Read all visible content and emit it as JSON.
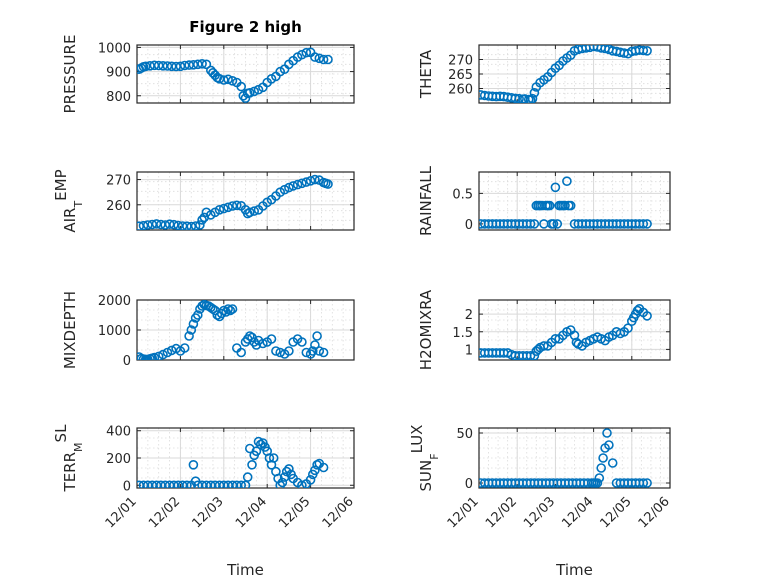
{
  "figure_title": "Figure 2 high",
  "marker_color": "#0072BD",
  "chart_data": [
    {
      "id": "pressure",
      "type": "scatter",
      "title": "Figure 2 high",
      "ylabel": "PRESSURE",
      "ylabel_sub": "",
      "xlim": [
        0,
        5
      ],
      "ylim": [
        770,
        1010
      ],
      "yticks": [
        800,
        900,
        1000
      ],
      "xticks": [
        "12/01",
        "12/02",
        "12/03",
        "12/04",
        "12/05",
        "12/06"
      ],
      "show_xticks": false,
      "xlabel": "",
      "x": [
        0.05,
        0.1,
        0.15,
        0.2,
        0.3,
        0.4,
        0.5,
        0.6,
        0.7,
        0.8,
        0.9,
        1.0,
        1.1,
        1.2,
        1.3,
        1.4,
        1.5,
        1.6,
        1.7,
        1.75,
        1.8,
        1.85,
        1.9,
        2.0,
        2.1,
        2.2,
        2.3,
        2.4,
        2.45,
        2.5,
        2.55,
        2.6,
        2.7,
        2.8,
        2.9,
        3.0,
        3.1,
        3.2,
        3.3,
        3.4,
        3.5,
        3.6,
        3.7,
        3.8,
        3.9,
        4.0,
        4.1,
        4.2,
        4.3,
        4.4
      ],
      "y": [
        910,
        915,
        920,
        922,
        924,
        926,
        925,
        924,
        923,
        922,
        921,
        922,
        925,
        927,
        928,
        930,
        932,
        930,
        905,
        895,
        885,
        875,
        870,
        865,
        868,
        862,
        855,
        838,
        800,
        790,
        810,
        812,
        818,
        825,
        835,
        855,
        870,
        880,
        900,
        910,
        930,
        945,
        960,
        970,
        978,
        980,
        960,
        955,
        950,
        950
      ]
    },
    {
      "id": "theta",
      "type": "scatter",
      "title": "",
      "ylabel": "THETA",
      "ylabel_sub": "",
      "xlim": [
        0,
        5
      ],
      "ylim": [
        255,
        275
      ],
      "yticks": [
        260,
        265,
        270
      ],
      "xticks": [
        "12/01",
        "12/02",
        "12/03",
        "12/04",
        "12/05",
        "12/06"
      ],
      "show_xticks": false,
      "xlabel": "",
      "x": [
        0.05,
        0.15,
        0.25,
        0.35,
        0.45,
        0.55,
        0.65,
        0.75,
        0.85,
        0.95,
        1.05,
        1.15,
        1.2,
        1.3,
        1.35,
        1.4,
        1.45,
        1.5,
        1.6,
        1.7,
        1.8,
        1.9,
        2.0,
        2.1,
        2.2,
        2.3,
        2.4,
        2.5,
        2.6,
        2.7,
        2.8,
        2.9,
        3.0,
        3.1,
        3.2,
        3.3,
        3.4,
        3.5,
        3.6,
        3.7,
        3.8,
        3.9,
        4.0,
        4.1,
        4.2,
        4.3,
        4.4
      ],
      "y": [
        257.8,
        257.6,
        257.4,
        257.3,
        257.2,
        257.3,
        257.2,
        257.0,
        256.8,
        256.6,
        256.5,
        256.3,
        256.4,
        256.2,
        256.0,
        256.5,
        258.5,
        260.5,
        262.0,
        263.0,
        264.0,
        265.5,
        267.0,
        268.0,
        269.5,
        270.5,
        271.5,
        273.0,
        273.5,
        273.8,
        274.0,
        274.2,
        274.5,
        274.3,
        274.0,
        273.8,
        273.5,
        273.0,
        272.8,
        272.5,
        272.2,
        272.0,
        272.8,
        273.0,
        273.2,
        273.1,
        273.0
      ]
    },
    {
      "id": "air_temp",
      "type": "scatter",
      "title": "",
      "ylabel": "AIR",
      "ylabel_sub": "T",
      "ylabel_tail": "EMP",
      "xlim": [
        0,
        5
      ],
      "ylim": [
        250,
        273
      ],
      "yticks": [
        260,
        270
      ],
      "xticks": [
        "12/01",
        "12/02",
        "12/03",
        "12/04",
        "12/05",
        "12/06"
      ],
      "show_xticks": false,
      "xlabel": "",
      "x": [
        0.05,
        0.15,
        0.25,
        0.35,
        0.45,
        0.55,
        0.65,
        0.75,
        0.85,
        0.95,
        1.05,
        1.15,
        1.25,
        1.35,
        1.45,
        1.5,
        1.55,
        1.6,
        1.7,
        1.8,
        1.9,
        2.0,
        2.1,
        2.2,
        2.3,
        2.4,
        2.5,
        2.55,
        2.6,
        2.7,
        2.8,
        2.9,
        3.0,
        3.1,
        3.2,
        3.3,
        3.4,
        3.5,
        3.6,
        3.7,
        3.8,
        3.9,
        4.0,
        4.1,
        4.2,
        4.3,
        4.35,
        4.4
      ],
      "y": [
        251.5,
        251.7,
        252.0,
        252.2,
        252.4,
        252.2,
        252.0,
        252.3,
        252.1,
        251.8,
        251.6,
        251.5,
        251.4,
        251.6,
        252.0,
        254.0,
        255.0,
        257.0,
        256.0,
        257.0,
        258.0,
        258.5,
        259.0,
        259.5,
        259.8,
        259.6,
        258.0,
        256.5,
        257.0,
        257.5,
        258.0,
        259.5,
        261.0,
        262.0,
        263.5,
        265.0,
        266.0,
        266.8,
        267.5,
        268.0,
        268.5,
        269.0,
        269.5,
        270.0,
        269.8,
        268.8,
        268.5,
        268.2
      ]
    },
    {
      "id": "rainfall",
      "type": "scatter",
      "title": "",
      "ylabel": "RAINFALL",
      "ylabel_sub": "",
      "xlim": [
        0,
        5
      ],
      "ylim": [
        -0.1,
        0.85
      ],
      "yticks": [
        0,
        0.5
      ],
      "xticks": [
        "12/01",
        "12/02",
        "12/03",
        "12/04",
        "12/05",
        "12/06"
      ],
      "show_xticks": false,
      "xlabel": "",
      "x": [
        0.05,
        0.15,
        0.25,
        0.35,
        0.45,
        0.55,
        0.65,
        0.75,
        0.85,
        0.95,
        1.05,
        1.15,
        1.25,
        1.35,
        1.45,
        1.5,
        1.55,
        1.6,
        1.65,
        1.7,
        1.75,
        1.8,
        1.85,
        1.9,
        1.95,
        2.0,
        2.05,
        2.1,
        2.15,
        2.2,
        2.25,
        2.3,
        2.35,
        2.4,
        2.5,
        2.6,
        2.7,
        2.8,
        2.9,
        3.0,
        3.1,
        3.2,
        3.3,
        3.4,
        3.5,
        3.6,
        3.7,
        3.8,
        3.9,
        4.0,
        4.1,
        4.2,
        4.3,
        4.4
      ],
      "y": [
        0,
        0,
        0,
        0,
        0,
        0,
        0,
        0,
        0,
        0,
        0,
        0,
        0,
        0,
        0,
        0.3,
        0.3,
        0.3,
        0.3,
        0,
        0.3,
        0.3,
        0.3,
        0,
        0,
        0.6,
        0,
        0.3,
        0.3,
        0.3,
        0.3,
        0.7,
        0.3,
        0.3,
        0,
        0,
        0,
        0,
        0,
        0,
        0,
        0,
        0,
        0,
        0,
        0,
        0,
        0,
        0,
        0,
        0,
        0,
        0,
        0
      ]
    },
    {
      "id": "mixdepth",
      "type": "scatter",
      "title": "",
      "ylabel": "MIXDEPTH",
      "ylabel_sub": "",
      "xlim": [
        0,
        5
      ],
      "ylim": [
        0,
        2000
      ],
      "yticks": [
        0,
        1000,
        2000
      ],
      "xticks": [
        "12/01",
        "12/02",
        "12/03",
        "12/04",
        "12/05",
        "12/06"
      ],
      "show_xticks": false,
      "xlabel": "",
      "x": [
        0.05,
        0.1,
        0.15,
        0.2,
        0.25,
        0.3,
        0.35,
        0.4,
        0.5,
        0.6,
        0.7,
        0.8,
        0.9,
        1.0,
        1.1,
        1.2,
        1.25,
        1.3,
        1.35,
        1.4,
        1.45,
        1.5,
        1.55,
        1.6,
        1.65,
        1.7,
        1.75,
        1.8,
        1.85,
        1.9,
        1.95,
        2.0,
        2.05,
        2.1,
        2.15,
        2.2,
        2.3,
        2.4,
        2.5,
        2.55,
        2.6,
        2.65,
        2.7,
        2.75,
        2.8,
        2.9,
        3.0,
        3.1,
        3.2,
        3.3,
        3.4,
        3.5,
        3.6,
        3.7,
        3.8,
        3.9,
        4.0,
        4.05,
        4.1,
        4.15,
        4.2,
        4.3
      ],
      "y": [
        100,
        50,
        30,
        20,
        20,
        40,
        60,
        80,
        120,
        180,
        250,
        320,
        380,
        300,
        400,
        800,
        1000,
        1200,
        1400,
        1500,
        1700,
        1800,
        1850,
        1820,
        1800,
        1750,
        1700,
        1650,
        1500,
        1450,
        1550,
        1650,
        1600,
        1700,
        1650,
        1700,
        400,
        250,
        600,
        700,
        800,
        750,
        600,
        500,
        650,
        550,
        600,
        700,
        300,
        250,
        200,
        300,
        600,
        700,
        600,
        250,
        200,
        300,
        500,
        800,
        300,
        250
      ]
    },
    {
      "id": "h2omixra",
      "type": "scatter",
      "title": "",
      "ylabel": "H2OMIXRA",
      "ylabel_sub": "",
      "xlim": [
        0,
        5
      ],
      "ylim": [
        0.7,
        2.4
      ],
      "yticks": [
        1,
        1.5,
        2
      ],
      "xticks": [
        "12/01",
        "12/02",
        "12/03",
        "12/04",
        "12/05",
        "12/06"
      ],
      "show_xticks": false,
      "xlabel": "",
      "x": [
        0.05,
        0.15,
        0.25,
        0.35,
        0.45,
        0.55,
        0.65,
        0.75,
        0.85,
        0.95,
        1.05,
        1.15,
        1.25,
        1.35,
        1.45,
        1.5,
        1.55,
        1.6,
        1.7,
        1.8,
        1.9,
        2.0,
        2.1,
        2.2,
        2.3,
        2.4,
        2.5,
        2.55,
        2.6,
        2.7,
        2.8,
        2.9,
        3.0,
        3.1,
        3.2,
        3.3,
        3.4,
        3.5,
        3.6,
        3.7,
        3.8,
        3.9,
        4.0,
        4.05,
        4.1,
        4.15,
        4.2,
        4.3,
        4.4
      ],
      "y": [
        0.9,
        0.9,
        0.9,
        0.9,
        0.9,
        0.9,
        0.9,
        0.9,
        0.85,
        0.82,
        0.82,
        0.82,
        0.82,
        0.82,
        0.82,
        0.95,
        1.0,
        1.05,
        1.1,
        1.1,
        1.2,
        1.3,
        1.3,
        1.4,
        1.5,
        1.55,
        1.4,
        1.2,
        1.15,
        1.1,
        1.2,
        1.25,
        1.3,
        1.35,
        1.3,
        1.25,
        1.35,
        1.4,
        1.5,
        1.45,
        1.5,
        1.6,
        1.8,
        1.9,
        2.0,
        2.1,
        2.15,
        2.05,
        1.95
      ]
    },
    {
      "id": "terr_msl",
      "type": "scatter",
      "title": "",
      "ylabel": "TERR",
      "ylabel_sub": "M",
      "ylabel_tail": "SL",
      "xlim": [
        0,
        5
      ],
      "ylim": [
        -20,
        420
      ],
      "yticks": [
        0,
        200,
        400
      ],
      "xticks": [
        "12/01",
        "12/02",
        "12/03",
        "12/04",
        "12/05",
        "12/06"
      ],
      "show_xticks": true,
      "xlabel": "Time",
      "x": [
        0.05,
        0.15,
        0.25,
        0.35,
        0.45,
        0.55,
        0.65,
        0.75,
        0.85,
        0.95,
        1.05,
        1.15,
        1.25,
        1.3,
        1.35,
        1.4,
        1.5,
        1.6,
        1.7,
        1.8,
        1.9,
        2.0,
        2.1,
        2.2,
        2.3,
        2.4,
        2.5,
        2.55,
        2.6,
        2.65,
        2.7,
        2.75,
        2.8,
        2.85,
        2.9,
        2.95,
        3.0,
        3.05,
        3.1,
        3.15,
        3.2,
        3.25,
        3.3,
        3.35,
        3.4,
        3.45,
        3.5,
        3.55,
        3.6,
        3.7,
        3.8,
        3.9,
        4.0,
        4.05,
        4.1,
        4.15,
        4.2,
        4.3
      ],
      "y": [
        0,
        0,
        0,
        0,
        0,
        0,
        0,
        0,
        0,
        0,
        0,
        0,
        0,
        150,
        30,
        0,
        0,
        0,
        0,
        0,
        0,
        0,
        0,
        0,
        0,
        0,
        0,
        60,
        270,
        150,
        220,
        250,
        320,
        300,
        310,
        280,
        250,
        200,
        150,
        200,
        100,
        50,
        0,
        20,
        60,
        100,
        120,
        80,
        50,
        20,
        0,
        10,
        40,
        80,
        110,
        150,
        160,
        130
      ]
    },
    {
      "id": "sun_flux",
      "type": "scatter",
      "title": "",
      "ylabel": "SUN",
      "ylabel_sub": "F",
      "ylabel_tail": "LUX",
      "xlim": [
        0,
        5
      ],
      "ylim": [
        -5,
        55
      ],
      "yticks": [
        0,
        50
      ],
      "xticks": [
        "12/01",
        "12/02",
        "12/03",
        "12/04",
        "12/05",
        "12/06"
      ],
      "show_xticks": true,
      "xlabel": "Time",
      "x": [
        0.05,
        0.15,
        0.25,
        0.35,
        0.45,
        0.55,
        0.65,
        0.75,
        0.85,
        0.95,
        1.05,
        1.15,
        1.25,
        1.35,
        1.45,
        1.55,
        1.65,
        1.75,
        1.85,
        1.95,
        2.05,
        2.15,
        2.25,
        2.35,
        2.45,
        2.55,
        2.65,
        2.75,
        2.85,
        2.95,
        3.0,
        3.05,
        3.1,
        3.15,
        3.2,
        3.25,
        3.3,
        3.35,
        3.4,
        3.5,
        3.6,
        3.7,
        3.8,
        3.9,
        4.0,
        4.1,
        4.2,
        4.3,
        4.4
      ],
      "y": [
        0,
        0,
        0,
        0,
        0,
        0,
        0,
        0,
        0,
        0,
        0,
        0,
        0,
        0,
        0,
        0,
        0,
        0,
        0,
        0,
        0,
        0,
        0,
        0,
        0,
        0,
        0,
        0,
        0,
        0,
        0,
        0,
        0,
        5,
        15,
        25,
        35,
        50,
        38,
        20,
        0,
        0,
        0,
        0,
        0,
        0,
        0,
        0,
        0
      ]
    }
  ]
}
